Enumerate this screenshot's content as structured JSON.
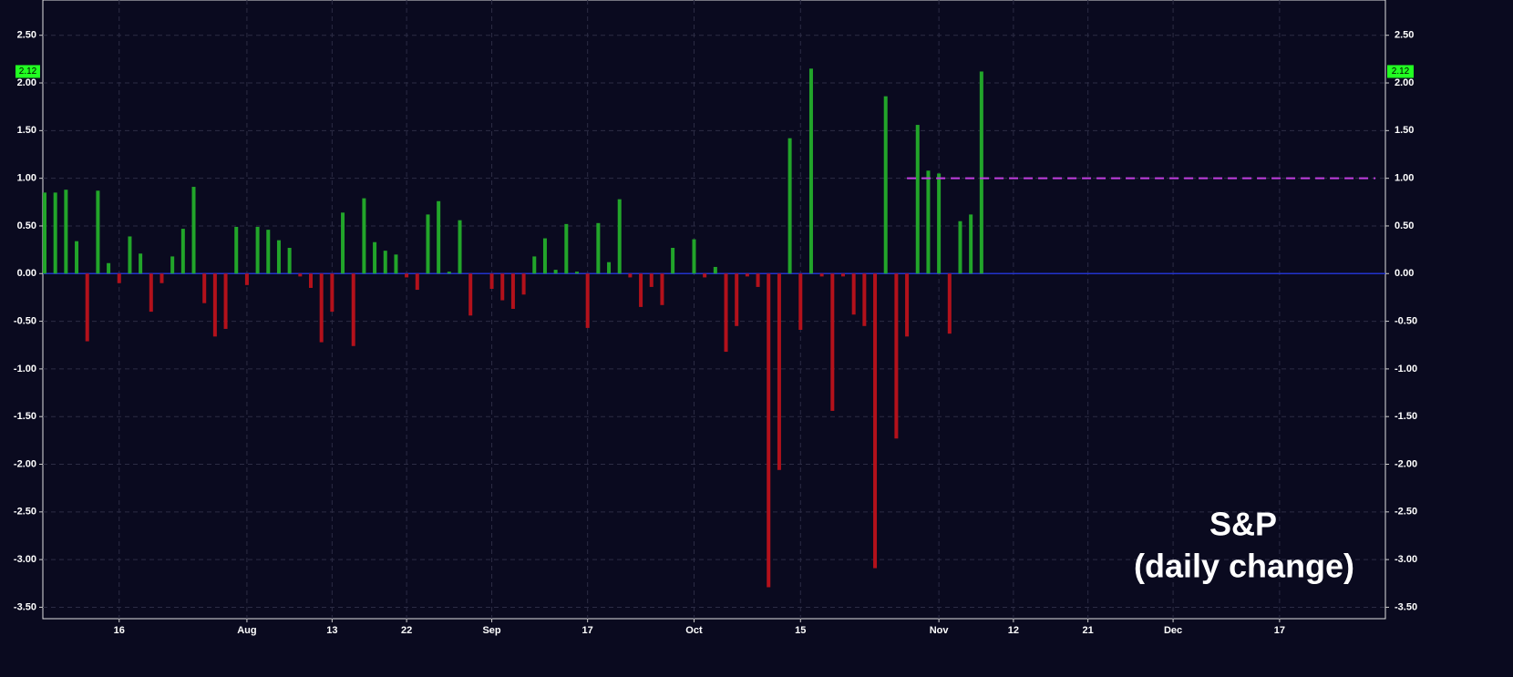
{
  "chart_data": {
    "type": "bar",
    "title": "S&P",
    "subtitle": "(daily change)",
    "categories": [
      null,
      null,
      null,
      null,
      null,
      null,
      null,
      "16",
      null,
      null,
      null,
      null,
      null,
      null,
      null,
      null,
      null,
      null,
      null,
      "Aug",
      null,
      null,
      null,
      null,
      null,
      null,
      null,
      "13",
      null,
      null,
      null,
      null,
      null,
      null,
      "22",
      null,
      null,
      null,
      null,
      null,
      null,
      null,
      "Sep",
      null,
      null,
      null,
      null,
      null,
      null,
      null,
      null,
      "17",
      null,
      null,
      null,
      null,
      null,
      null,
      null,
      null,
      null,
      "Oct",
      null,
      null,
      null,
      null,
      null,
      null,
      null,
      null,
      null,
      "15",
      null,
      null,
      null,
      null,
      null,
      null,
      null,
      null,
      null,
      null,
      null,
      null,
      "Nov",
      null,
      null,
      null,
      null,
      null,
      null,
      "12",
      null,
      null,
      null,
      null,
      null,
      null,
      "21",
      null,
      null,
      null,
      null,
      null,
      null,
      null,
      "Dec",
      null,
      null,
      null,
      null,
      null,
      null,
      null,
      null,
      null,
      "17",
      null,
      null,
      null,
      null,
      null,
      null,
      null,
      null,
      null
    ],
    "values": [
      0.85,
      0.85,
      0.88,
      0.34,
      -0.71,
      0.87,
      0.11,
      -0.1,
      0.39,
      0.21,
      -0.4,
      -0.1,
      0.18,
      0.47,
      0.91,
      -0.31,
      -0.66,
      -0.58,
      0.49,
      -0.12,
      0.49,
      0.46,
      0.35,
      0.27,
      -0.03,
      -0.15,
      -0.72,
      -0.4,
      0.64,
      -0.76,
      0.79,
      0.33,
      0.24,
      0.2,
      -0.04,
      -0.17,
      0.62,
      0.76,
      0.02,
      0.56,
      -0.44,
      0.0,
      -0.16,
      -0.28,
      -0.37,
      -0.22,
      0.18,
      0.37,
      0.04,
      0.52,
      0.02,
      -0.57,
      0.53,
      0.12,
      0.78,
      -0.04,
      -0.35,
      -0.14,
      -0.33,
      0.27,
      0.0,
      0.36,
      -0.04,
      0.07,
      -0.82,
      -0.55,
      -0.03,
      -0.14,
      -3.29,
      -2.06,
      1.42,
      -0.59,
      2.15,
      -0.03,
      -1.44,
      -0.03,
      -0.43,
      -0.55,
      -3.09,
      1.86,
      -1.73,
      -0.66,
      1.56,
      1.08,
      1.05,
      -0.63,
      0.55,
      0.62,
      2.12,
      null,
      null,
      null,
      null,
      null,
      null,
      null,
      null,
      null,
      null,
      null,
      null,
      null,
      null,
      null,
      null,
      null,
      null,
      null,
      null,
      null,
      null,
      null,
      null,
      null,
      null,
      null,
      null,
      null,
      null,
      null,
      null,
      null,
      null,
      null,
      null,
      null
    ],
    "trend_values": [
      null,
      null,
      null,
      null,
      null,
      null,
      null,
      null,
      null,
      null,
      null,
      null,
      null,
      null,
      null,
      null,
      null,
      null,
      null,
      null,
      null,
      null,
      null,
      null,
      null,
      null,
      null,
      null,
      null,
      null,
      null,
      null,
      null,
      null,
      null,
      null,
      null,
      null,
      null,
      null,
      null,
      null,
      null,
      null,
      null,
      null,
      null,
      null,
      null,
      null,
      null,
      null,
      null,
      null,
      null,
      null,
      null,
      null,
      null,
      null,
      null,
      null,
      null,
      null,
      null,
      null,
      null,
      null,
      null,
      null,
      null,
      null,
      null,
      null,
      null,
      null,
      null,
      null,
      null,
      null,
      null,
      1.0,
      1.0,
      1.0,
      1.0,
      1.0,
      1.0,
      1.0,
      1.0,
      1.0,
      1.0,
      1.0,
      1.0,
      1.0,
      1.0,
      1.0,
      1.0,
      1.0,
      1.0,
      1.0,
      1.0,
      1.0,
      1.0,
      1.0,
      1.0,
      1.0,
      1.0,
      1.0,
      1.0,
      1.0,
      1.0,
      1.0,
      1.0,
      1.0,
      1.0,
      1.0,
      1.0,
      1.0,
      1.0,
      1.0,
      1.0,
      1.0,
      1.0,
      1.0,
      1.0,
      1.0
    ],
    "up_color": "#22a52a",
    "down_color": "#b3111b",
    "trend_color": "#c23fe0",
    "last_value_marker": true,
    "marker_color": "#22ff22",
    "ylim": [
      -3.62,
      2.87
    ],
    "yticks": [
      {
        "value": 2.5,
        "label": "2.50"
      },
      {
        "value": 2.0,
        "label": "2.00"
      },
      {
        "value": 1.5,
        "label": "1.50"
      },
      {
        "value": 1.0,
        "label": "1.00"
      },
      {
        "value": 0.5,
        "label": "0.50"
      },
      {
        "value": 0,
        "label": "0.00"
      },
      {
        "value": -0.5,
        "label": "-0.50"
      },
      {
        "value": -1.0,
        "label": "-1.00"
      },
      {
        "value": -1.5,
        "label": "-1.50"
      },
      {
        "value": -2.0,
        "label": "-2.00"
      },
      {
        "value": -2.5,
        "label": "-2.50"
      },
      {
        "value": -3.0,
        "label": "-3.00"
      },
      {
        "value": -3.5,
        "label": "-3.50"
      }
    ],
    "grid": true
  }
}
